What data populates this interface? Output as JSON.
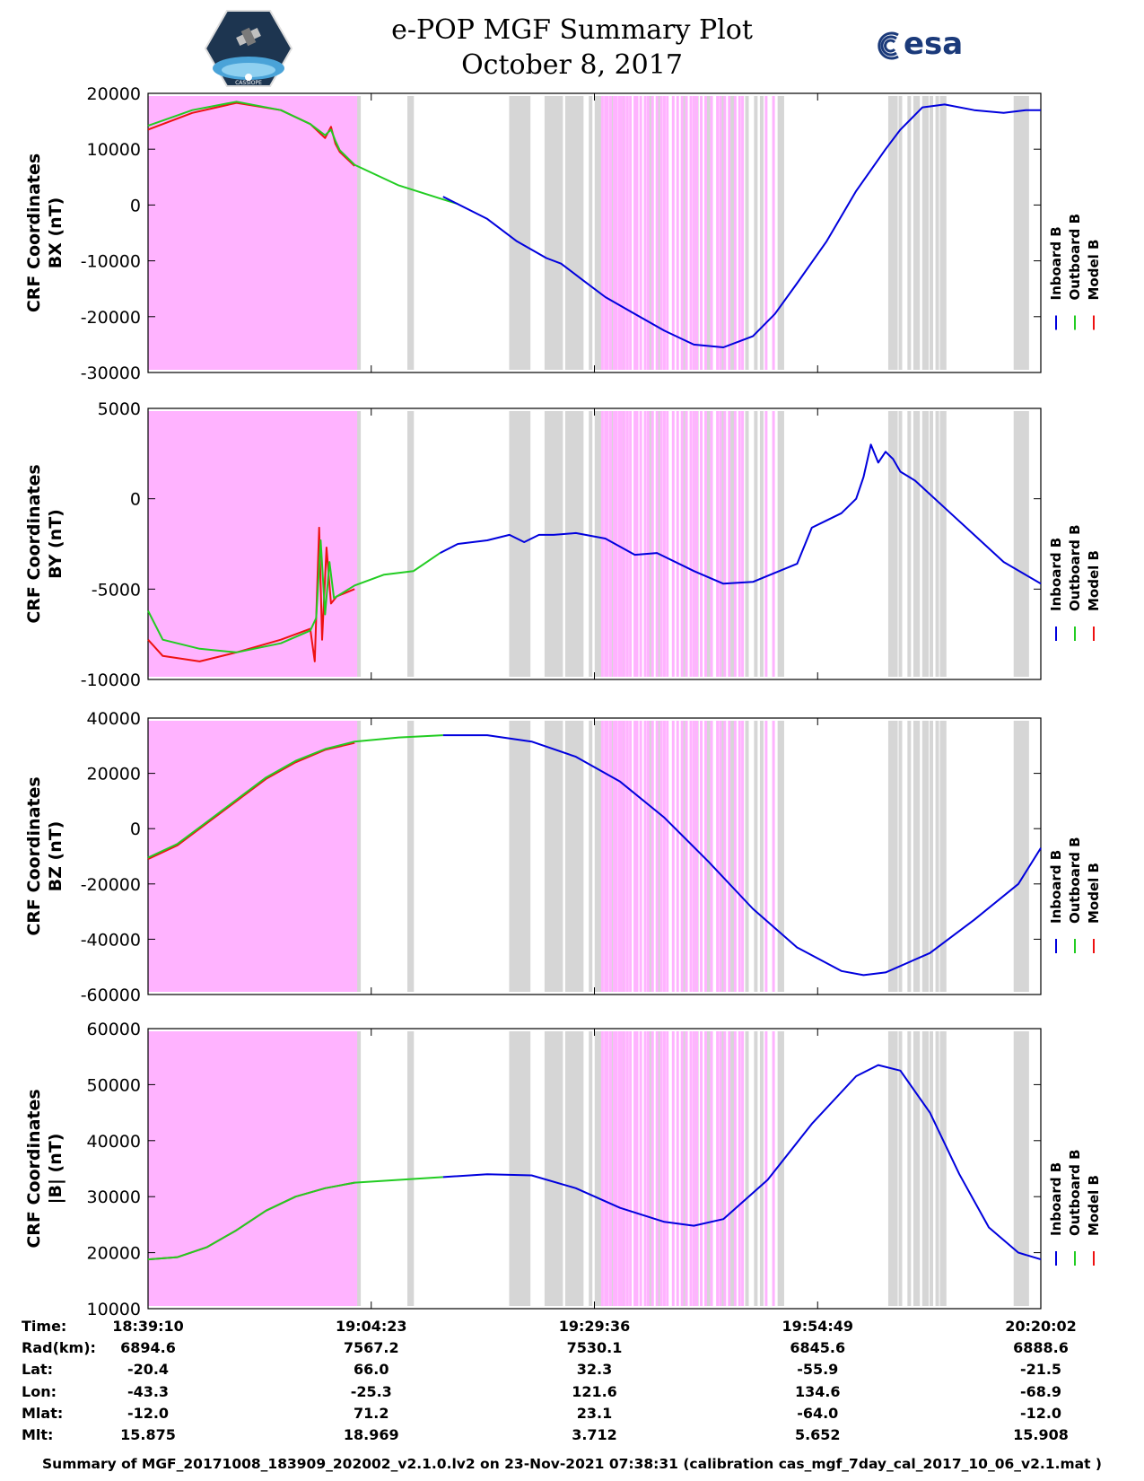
{
  "header": {
    "title_line1": "e-POP MGF Summary Plot",
    "title_line2": "October 8, 2017",
    "left_logo_text": "CASSIOPE",
    "right_logo_text": "esa"
  },
  "colors": {
    "inboard": "#0000dd",
    "outboard": "#22cc22",
    "model": "#ee1111",
    "magenta_shade": "#ffb3ff",
    "gray_shade": "#d6d6d6"
  },
  "chart_data": [
    {
      "type": "line",
      "ylabel_line1": "CRF Coordinates",
      "ylabel_line2": "BX (nT)",
      "ylim": [
        -30000,
        20000
      ],
      "yticks": [
        -30000,
        -20000,
        -10000,
        0,
        10000,
        20000
      ],
      "ytick_labels": [
        "-30000",
        "-20000",
        "-10000",
        "0",
        "10000",
        "20000"
      ],
      "legend": [
        "Inboard B",
        "Outboard B",
        "Model B"
      ],
      "x_min": 0,
      "x_max": 6052,
      "series": [
        {
          "name": "Model B",
          "x": [
            0,
            300,
            600,
            900,
            1100,
            1200,
            1240,
            1270,
            1300,
            1400
          ],
          "y": [
            13500,
            16500,
            18300,
            17000,
            14500,
            12000,
            14000,
            11000,
            9500,
            7000
          ]
        },
        {
          "name": "Outboard B",
          "x": [
            0,
            300,
            600,
            900,
            1100,
            1200,
            1240,
            1270,
            1300,
            1400,
            1700,
            2000,
            2100
          ],
          "y": [
            14200,
            17000,
            18500,
            17000,
            14500,
            12500,
            13500,
            11500,
            9800,
            7200,
            3500,
            1000,
            200
          ]
        },
        {
          "name": "Inboard B",
          "x": [
            2000,
            2300,
            2500,
            2700,
            2800,
            2950,
            3100,
            3300,
            3500,
            3700,
            3900,
            4100,
            4250,
            4400,
            4600,
            4800,
            5000,
            5100,
            5250,
            5400,
            5600,
            5800,
            5950,
            6052
          ],
          "y": [
            1500,
            -2500,
            -6500,
            -9500,
            -10500,
            -13500,
            -16500,
            -19500,
            -22500,
            -25000,
            -25500,
            -23500,
            -19500,
            -14000,
            -6500,
            2500,
            10000,
            13500,
            17500,
            18000,
            17000,
            16500,
            17000,
            17000
          ]
        }
      ]
    },
    {
      "type": "line",
      "ylabel_line1": "CRF Coordinates",
      "ylabel_line2": "BY (nT)",
      "ylim": [
        -10000,
        5000
      ],
      "yticks": [
        -10000,
        -5000,
        0,
        5000
      ],
      "ytick_labels": [
        "-10000",
        "-5000",
        "0",
        "5000"
      ],
      "legend": [
        "Inboard B",
        "Outboard B",
        "Model B"
      ],
      "x_min": 0,
      "x_max": 6052,
      "series": [
        {
          "name": "Model B",
          "x": [
            0,
            100,
            350,
            600,
            900,
            1100,
            1130,
            1160,
            1180,
            1210,
            1240,
            1280,
            1400
          ],
          "y": [
            -7800,
            -8700,
            -9000,
            -8500,
            -7800,
            -7200,
            -9000,
            -1600,
            -7800,
            -2700,
            -5800,
            -5400,
            -5000
          ]
        },
        {
          "name": "Outboard B",
          "x": [
            0,
            100,
            350,
            600,
            900,
            1100,
            1140,
            1170,
            1200,
            1230,
            1260,
            1400,
            1600,
            1800,
            1980
          ],
          "y": [
            -6200,
            -7800,
            -8300,
            -8500,
            -8000,
            -7300,
            -6600,
            -2300,
            -6400,
            -3500,
            -5500,
            -4800,
            -4200,
            -4000,
            -3000
          ]
        },
        {
          "name": "Inboard B",
          "x": [
            1980,
            2100,
            2300,
            2450,
            2550,
            2650,
            2750,
            2900,
            3100,
            3300,
            3450,
            3700,
            3900,
            4100,
            4250,
            4400,
            4500,
            4600,
            4700,
            4800,
            4850,
            4900,
            4950,
            5000,
            5050,
            5100,
            5200,
            5400,
            5600,
            5800,
            6052
          ],
          "y": [
            -3000,
            -2500,
            -2300,
            -2000,
            -2400,
            -2000,
            -2000,
            -1900,
            -2200,
            -3100,
            -3000,
            -4000,
            -4700,
            -4600,
            -4100,
            -3600,
            -1600,
            -1200,
            -800,
            0,
            1200,
            3000,
            2000,
            2600,
            2200,
            1500,
            1000,
            -500,
            -2000,
            -3500,
            -4700
          ]
        }
      ]
    },
    {
      "type": "line",
      "ylabel_line1": "CRF Coordinates",
      "ylabel_line2": "BZ (nT)",
      "ylim": [
        -60000,
        40000
      ],
      "yticks": [
        -60000,
        -40000,
        -20000,
        0,
        20000,
        40000
      ],
      "ytick_labels": [
        "-60000",
        "-40000",
        "-20000",
        "0",
        "20000",
        "40000"
      ],
      "legend": [
        "Inboard B",
        "Outboard B",
        "Model B"
      ],
      "x_min": 0,
      "x_max": 6052,
      "series": [
        {
          "name": "Model B",
          "x": [
            0,
            200,
            400,
            600,
            800,
            1000,
            1200,
            1400
          ],
          "y": [
            -11000,
            -6000,
            2000,
            10000,
            18000,
            24000,
            28500,
            31000
          ]
        },
        {
          "name": "Outboard B",
          "x": [
            0,
            200,
            400,
            600,
            800,
            1000,
            1200,
            1400,
            1700,
            2000
          ],
          "y": [
            -10500,
            -5500,
            2500,
            10500,
            18500,
            24500,
            28800,
            31500,
            33000,
            33800
          ]
        },
        {
          "name": "Inboard B",
          "x": [
            2000,
            2300,
            2600,
            2900,
            3200,
            3500,
            3800,
            4100,
            4400,
            4700,
            4850,
            5000,
            5300,
            5600,
            5900,
            6052
          ],
          "y": [
            33800,
            33800,
            31500,
            26000,
            17000,
            4000,
            -12000,
            -29000,
            -43000,
            -51500,
            -53000,
            -52000,
            -45000,
            -33000,
            -20000,
            -7000
          ]
        }
      ]
    },
    {
      "type": "line",
      "ylabel_line1": "CRF Coordinates",
      "ylabel_line2": "|B| (nT)",
      "ylim": [
        10000,
        60000
      ],
      "yticks": [
        10000,
        20000,
        30000,
        40000,
        50000,
        60000
      ],
      "ytick_labels": [
        "10000",
        "20000",
        "30000",
        "40000",
        "50000",
        "60000"
      ],
      "legend": [
        "Inboard B",
        "Outboard B",
        "Model B"
      ],
      "x_min": 0,
      "x_max": 6052,
      "series": [
        {
          "name": "Model B",
          "x": [
            0,
            200,
            400,
            600,
            800,
            1000,
            1200,
            1400
          ],
          "y": [
            18800,
            19200,
            21000,
            24000,
            27500,
            30000,
            31500,
            32500
          ]
        },
        {
          "name": "Outboard B",
          "x": [
            0,
            200,
            400,
            600,
            800,
            1000,
            1200,
            1400,
            1700,
            2000
          ],
          "y": [
            18800,
            19200,
            21000,
            24000,
            27500,
            30000,
            31500,
            32500,
            33000,
            33500
          ]
        },
        {
          "name": "Inboard B",
          "x": [
            2000,
            2300,
            2600,
            2900,
            3200,
            3500,
            3700,
            3900,
            4200,
            4500,
            4800,
            4950,
            5100,
            5300,
            5500,
            5700,
            5900,
            6052
          ],
          "y": [
            33500,
            34000,
            33800,
            31500,
            28000,
            25500,
            24800,
            26000,
            33000,
            43000,
            51500,
            53500,
            52500,
            45000,
            34000,
            24500,
            20000,
            18800
          ]
        }
      ]
    }
  ],
  "shading": {
    "magenta_full": [
      [
        0,
        1420
      ]
    ],
    "magenta_lines": [
      3080,
      3100,
      3115,
      3135,
      3160,
      3175,
      3195,
      3210,
      3230,
      3250,
      3270,
      3300,
      3315,
      3340,
      3370,
      3390,
      3420,
      3450,
      3480,
      3500,
      3520,
      3560,
      3590,
      3620,
      3650,
      3680,
      3700,
      3720,
      3750,
      3780,
      3820,
      3860,
      3880,
      3910,
      3940,
      3980,
      4010,
      4030,
      4190,
      4240
    ],
    "gray_lines": [
      1430,
      1770,
      1790,
      2460,
      2480,
      2500,
      2520,
      2540,
      2560,
      2580,
      2700,
      2720,
      2740,
      2760,
      2780,
      2800,
      2840,
      2860,
      2880,
      2900,
      2920,
      2940,
      3000,
      3040,
      3060,
      3140,
      3220,
      3400,
      3460,
      3640,
      3720,
      3800,
      3900,
      3960,
      4060,
      4120,
      4160,
      4280,
      4300,
      5030,
      5050,
      5070,
      5100,
      5160,
      5200,
      5220,
      5260,
      5280,
      5310,
      5350,
      5380,
      5400,
      5880,
      5900,
      5920,
      5940,
      5960
    ]
  },
  "xticks": [
    0,
    1513,
    3026,
    4539,
    6052
  ],
  "info_table": {
    "labels": [
      "Time:",
      "Rad(km):",
      "Lat:",
      "Lon:",
      "Mlat:",
      "Mlt:"
    ],
    "columns": [
      [
        "18:39:10",
        "6894.6",
        "-20.4",
        "-43.3",
        "-12.0",
        "15.875"
      ],
      [
        "19:04:23",
        "7567.2",
        "66.0",
        "-25.3",
        "71.2",
        "18.969"
      ],
      [
        "19:29:36",
        "7530.1",
        "32.3",
        "121.6",
        "23.1",
        "3.712"
      ],
      [
        "19:54:49",
        "6845.6",
        "-55.9",
        "134.6",
        "-64.0",
        "5.652"
      ],
      [
        "20:20:02",
        "6888.6",
        "-21.5",
        "-68.9",
        "-12.0",
        "15.908"
      ]
    ]
  },
  "footer": "Summary of MGF_20171008_183909_202002_v2.1.0.lv2 on 23-Nov-2021 07:38:31 (calibration cas_mgf_7day_cal_2017_10_06_v2.1.mat )"
}
